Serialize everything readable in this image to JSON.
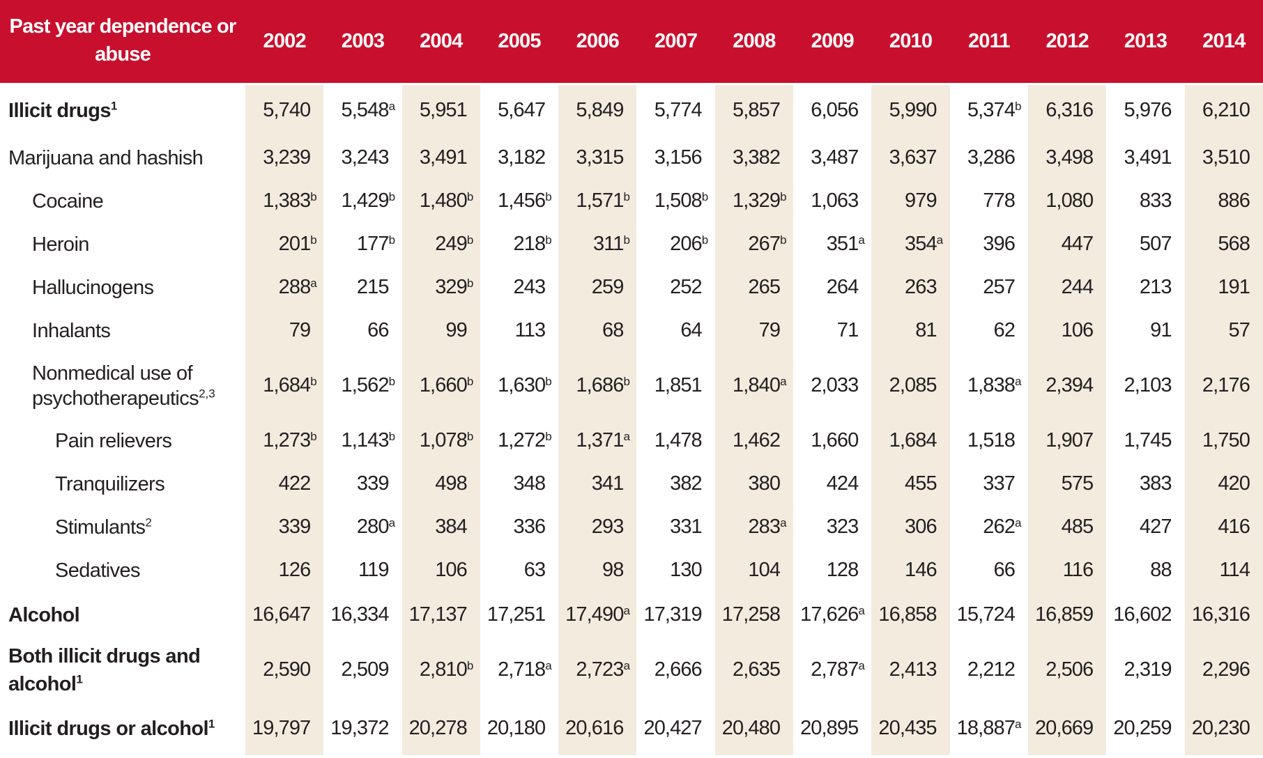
{
  "header": {
    "label": "Past year dependence or abuse",
    "years": [
      "2002",
      "2003",
      "2004",
      "2005",
      "2006",
      "2007",
      "2008",
      "2009",
      "2010",
      "2011",
      "2012",
      "2013",
      "2014"
    ]
  },
  "colors": {
    "header_bg": "#c8102e",
    "shade": "#f4ebdf"
  },
  "rows": [
    {
      "label": "Illicit drugs",
      "sup": "1",
      "bold": true,
      "indent": 0,
      "values": [
        {
          "v": "5,740"
        },
        {
          "v": "5,548",
          "s": "a"
        },
        {
          "v": "5,951"
        },
        {
          "v": "5,647"
        },
        {
          "v": "5,849"
        },
        {
          "v": "5,774"
        },
        {
          "v": "5,857"
        },
        {
          "v": "6,056"
        },
        {
          "v": "5,990"
        },
        {
          "v": "5,374",
          "s": "b"
        },
        {
          "v": "6,316"
        },
        {
          "v": "5,976"
        },
        {
          "v": "6,210"
        }
      ]
    },
    {
      "label": "Marijuana and hashish",
      "indent": 0,
      "values": [
        {
          "v": "3,239"
        },
        {
          "v": "3,243"
        },
        {
          "v": "3,491"
        },
        {
          "v": "3,182"
        },
        {
          "v": "3,315"
        },
        {
          "v": "3,156"
        },
        {
          "v": "3,382"
        },
        {
          "v": "3,487"
        },
        {
          "v": "3,637"
        },
        {
          "v": "3,286"
        },
        {
          "v": "3,498"
        },
        {
          "v": "3,491"
        },
        {
          "v": "3,510"
        }
      ]
    },
    {
      "label": "Cocaine",
      "indent": 1,
      "values": [
        {
          "v": "1,383",
          "s": "b"
        },
        {
          "v": "1,429",
          "s": "b"
        },
        {
          "v": "1,480",
          "s": "b"
        },
        {
          "v": "1,456",
          "s": "b"
        },
        {
          "v": "1,571",
          "s": "b"
        },
        {
          "v": "1,508",
          "s": "b"
        },
        {
          "v": "1,329",
          "s": "b"
        },
        {
          "v": "1,063"
        },
        {
          "v": "979"
        },
        {
          "v": "778"
        },
        {
          "v": "1,080"
        },
        {
          "v": "833"
        },
        {
          "v": "886"
        }
      ]
    },
    {
      "label": "Heroin",
      "indent": 1,
      "values": [
        {
          "v": "201",
          "s": "b"
        },
        {
          "v": "177",
          "s": "b"
        },
        {
          "v": "249",
          "s": "b"
        },
        {
          "v": "218",
          "s": "b"
        },
        {
          "v": "311",
          "s": "b"
        },
        {
          "v": "206",
          "s": "b"
        },
        {
          "v": "267",
          "s": "b"
        },
        {
          "v": "351",
          "s": "a"
        },
        {
          "v": "354",
          "s": "a"
        },
        {
          "v": "396"
        },
        {
          "v": "447"
        },
        {
          "v": "507"
        },
        {
          "v": "568"
        }
      ]
    },
    {
      "label": "Hallucinogens",
      "indent": 1,
      "values": [
        {
          "v": "288",
          "s": "a"
        },
        {
          "v": "215"
        },
        {
          "v": "329",
          "s": "b"
        },
        {
          "v": "243"
        },
        {
          "v": "259"
        },
        {
          "v": "252"
        },
        {
          "v": "265"
        },
        {
          "v": "264"
        },
        {
          "v": "263"
        },
        {
          "v": "257"
        },
        {
          "v": "244"
        },
        {
          "v": "213"
        },
        {
          "v": "191"
        }
      ]
    },
    {
      "label": "Inhalants",
      "indent": 1,
      "values": [
        {
          "v": "79"
        },
        {
          "v": "66"
        },
        {
          "v": "99"
        },
        {
          "v": "113"
        },
        {
          "v": "68"
        },
        {
          "v": "64"
        },
        {
          "v": "79"
        },
        {
          "v": "71"
        },
        {
          "v": "81"
        },
        {
          "v": "62"
        },
        {
          "v": "106"
        },
        {
          "v": "91"
        },
        {
          "v": "57"
        }
      ]
    },
    {
      "label": "Nonmedical use of psychotherapeutics",
      "sup": "2,3",
      "indent": 1,
      "tall": true,
      "values": [
        {
          "v": "1,684",
          "s": "b"
        },
        {
          "v": "1,562",
          "s": "b"
        },
        {
          "v": "1,660",
          "s": "b"
        },
        {
          "v": "1,630",
          "s": "b"
        },
        {
          "v": "1,686",
          "s": "b"
        },
        {
          "v": "1,851"
        },
        {
          "v": "1,840",
          "s": "a"
        },
        {
          "v": "2,033"
        },
        {
          "v": "2,085"
        },
        {
          "v": "1,838",
          "s": "a"
        },
        {
          "v": "2,394"
        },
        {
          "v": "2,103"
        },
        {
          "v": "2,176"
        }
      ]
    },
    {
      "label": "Pain relievers",
      "indent": 2,
      "values": [
        {
          "v": "1,273",
          "s": "b"
        },
        {
          "v": "1,143",
          "s": "b"
        },
        {
          "v": "1,078",
          "s": "b"
        },
        {
          "v": "1,272",
          "s": "b"
        },
        {
          "v": "1,371",
          "s": "a"
        },
        {
          "v": "1,478"
        },
        {
          "v": "1,462"
        },
        {
          "v": "1,660"
        },
        {
          "v": "1,684"
        },
        {
          "v": "1,518"
        },
        {
          "v": "1,907"
        },
        {
          "v": "1,745"
        },
        {
          "v": "1,750"
        }
      ]
    },
    {
      "label": "Tranquilizers",
      "indent": 2,
      "values": [
        {
          "v": "422"
        },
        {
          "v": "339"
        },
        {
          "v": "498"
        },
        {
          "v": "348"
        },
        {
          "v": "341"
        },
        {
          "v": "382"
        },
        {
          "v": "380"
        },
        {
          "v": "424"
        },
        {
          "v": "455"
        },
        {
          "v": "337"
        },
        {
          "v": "575"
        },
        {
          "v": "383"
        },
        {
          "v": "420"
        }
      ]
    },
    {
      "label": "Stimulants",
      "sup": "2",
      "indent": 2,
      "values": [
        {
          "v": "339"
        },
        {
          "v": "280",
          "s": "a"
        },
        {
          "v": "384"
        },
        {
          "v": "336"
        },
        {
          "v": "293"
        },
        {
          "v": "331"
        },
        {
          "v": "283",
          "s": "a"
        },
        {
          "v": "323"
        },
        {
          "v": "306"
        },
        {
          "v": "262",
          "s": "a"
        },
        {
          "v": "485"
        },
        {
          "v": "427"
        },
        {
          "v": "416"
        }
      ]
    },
    {
      "label": "Sedatives",
      "indent": 2,
      "values": [
        {
          "v": "126"
        },
        {
          "v": "119"
        },
        {
          "v": "106"
        },
        {
          "v": "63"
        },
        {
          "v": "98"
        },
        {
          "v": "130"
        },
        {
          "v": "104"
        },
        {
          "v": "128"
        },
        {
          "v": "146"
        },
        {
          "v": "66"
        },
        {
          "v": "116"
        },
        {
          "v": "88"
        },
        {
          "v": "114"
        }
      ]
    },
    {
      "label": "Alcohol",
      "bold": true,
      "indent": 0,
      "mid": true,
      "values": [
        {
          "v": "16,647"
        },
        {
          "v": "16,334"
        },
        {
          "v": "17,137"
        },
        {
          "v": "17,251"
        },
        {
          "v": "17,490",
          "s": "a"
        },
        {
          "v": "17,319"
        },
        {
          "v": "17,258"
        },
        {
          "v": "17,626",
          "s": "a"
        },
        {
          "v": "16,858"
        },
        {
          "v": "15,724"
        },
        {
          "v": "16,859"
        },
        {
          "v": "16,602"
        },
        {
          "v": "16,316"
        }
      ]
    },
    {
      "label": "Both illicit drugs and alcohol",
      "sup": "1",
      "bold": true,
      "indent": 0,
      "tall": true,
      "hang": true,
      "values": [
        {
          "v": "2,590"
        },
        {
          "v": "2,509"
        },
        {
          "v": "2,810",
          "s": "b"
        },
        {
          "v": "2,718",
          "s": "a"
        },
        {
          "v": "2,723",
          "s": "a"
        },
        {
          "v": "2,666"
        },
        {
          "v": "2,635"
        },
        {
          "v": "2,787",
          "s": "a"
        },
        {
          "v": "2,413"
        },
        {
          "v": "2,212"
        },
        {
          "v": "2,506"
        },
        {
          "v": "2,319"
        },
        {
          "v": "2,296"
        }
      ]
    },
    {
      "label": "Illicit drugs or alcohol",
      "sup": "1",
      "bold": true,
      "indent": 0,
      "mid": true,
      "values": [
        {
          "v": "19,797"
        },
        {
          "v": "19,372"
        },
        {
          "v": "20,278"
        },
        {
          "v": "20,180"
        },
        {
          "v": "20,616"
        },
        {
          "v": "20,427"
        },
        {
          "v": "20,480"
        },
        {
          "v": "20,895"
        },
        {
          "v": "20,435"
        },
        {
          "v": "18,887",
          "s": "a"
        },
        {
          "v": "20,669"
        },
        {
          "v": "20,259"
        },
        {
          "v": "20,230"
        }
      ]
    }
  ]
}
